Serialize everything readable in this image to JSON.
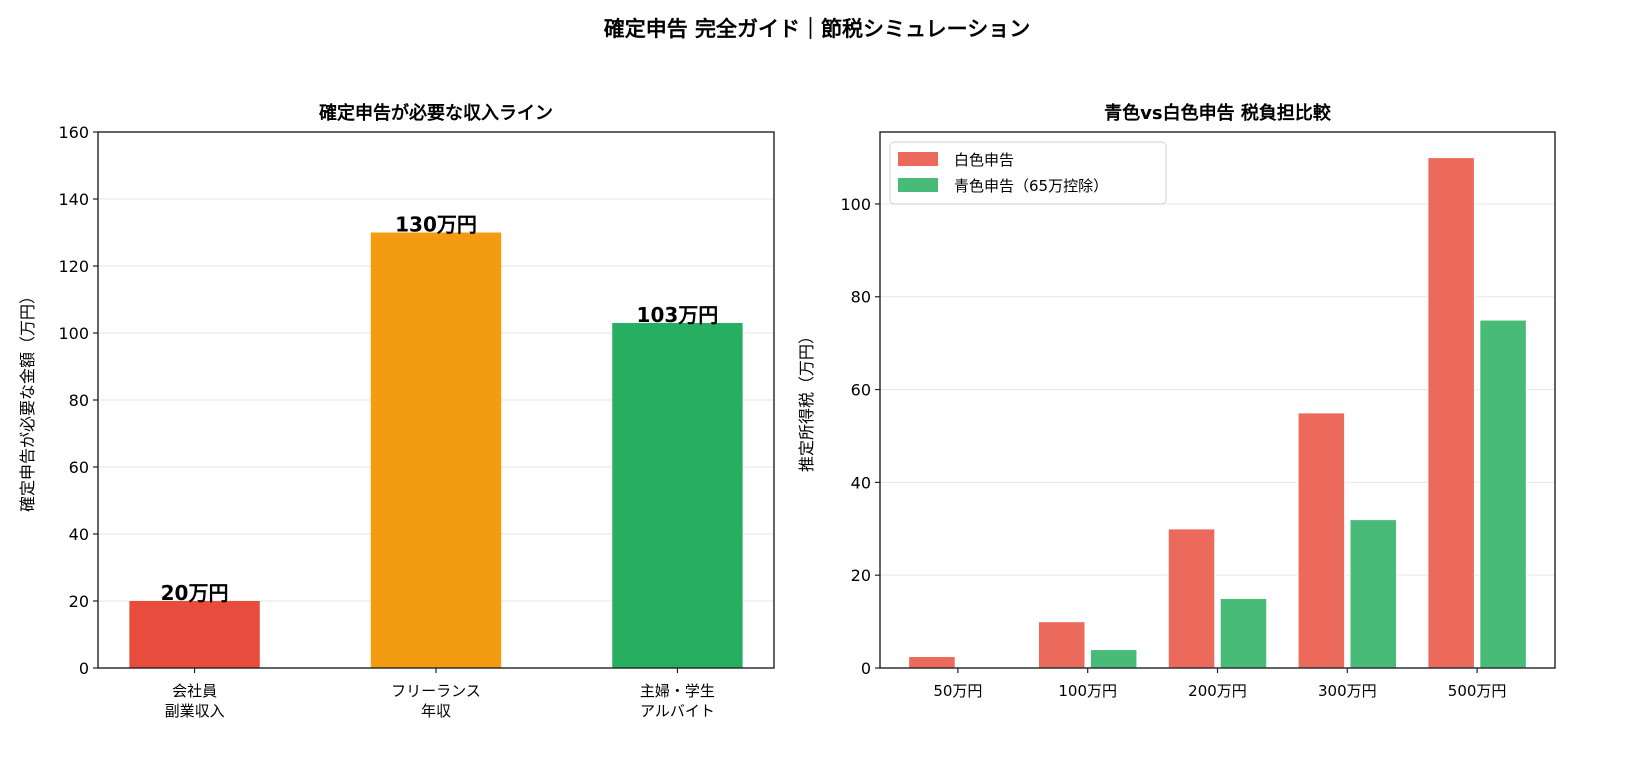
{
  "suptitle": "確定申告 完全ガイド｜節税シミュレーション",
  "chart_data": [
    {
      "type": "bar",
      "title": "確定申告が必要な収入ライン",
      "ylabel": "確定申告が必要な金額（万円）",
      "xlabel": "",
      "categories": [
        "会社員\n副業収入",
        "フリーランス\n年収",
        "主婦・学生\nアルバイト"
      ],
      "values": [
        20,
        130,
        103
      ],
      "data_labels": [
        "20万円",
        "130万円",
        "103万円"
      ],
      "colors": [
        "#e74c3c",
        "#f39c12",
        "#27ae60"
      ],
      "ylim": [
        0,
        160
      ],
      "yticks": [
        0,
        20,
        40,
        60,
        80,
        100,
        120,
        140,
        160
      ],
      "grid": "y"
    },
    {
      "type": "bar",
      "title": "青色vs白色申告 税負担比較",
      "ylabel": "推定所得税（万円）",
      "xlabel": "",
      "categories": [
        "50万円",
        "100万円",
        "200万円",
        "300万円",
        "500万円"
      ],
      "series": [
        {
          "name": "白色申告",
          "values": [
            2.5,
            10,
            30,
            55,
            110
          ],
          "color": "#ec6a5c"
        },
        {
          "name": "青色申告（65万控除）",
          "values": [
            0,
            4,
            15,
            32,
            75
          ],
          "color": "#48bb78"
        }
      ],
      "ylim": [
        0,
        115.5
      ],
      "yticks": [
        0,
        20,
        40,
        60,
        80,
        100
      ],
      "legend": "top-left",
      "grid": "y"
    }
  ]
}
